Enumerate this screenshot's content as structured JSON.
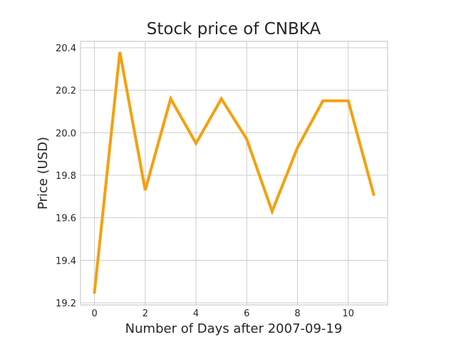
{
  "chart_data": {
    "type": "line",
    "title": "Stock price of CNBKA",
    "xlabel": "Number of Days after 2007-09-19",
    "ylabel": "Price (USD)",
    "xlim": [
      -0.55,
      11.55
    ],
    "ylim": [
      19.19,
      20.43
    ],
    "x_ticks": [
      0,
      2,
      4,
      6,
      8,
      10
    ],
    "y_ticks": [
      19.2,
      19.4,
      19.6,
      19.8,
      20.0,
      20.2,
      20.4
    ],
    "x_tick_labels": [
      "0",
      "2",
      "4",
      "6",
      "8",
      "10"
    ],
    "y_tick_labels": [
      "19.2",
      "19.4",
      "19.6",
      "19.8",
      "20.0",
      "20.2",
      "20.4"
    ],
    "grid": true,
    "legend": "none",
    "series": [
      {
        "color": "#f5a00f",
        "x": [
          0,
          1,
          2,
          3,
          4,
          5,
          6,
          7,
          8,
          9,
          10,
          11
        ],
        "values": [
          19.25,
          20.38,
          19.73,
          20.16,
          19.95,
          20.16,
          19.97,
          19.63,
          19.93,
          20.15,
          20.15,
          19.71
        ]
      }
    ]
  }
}
